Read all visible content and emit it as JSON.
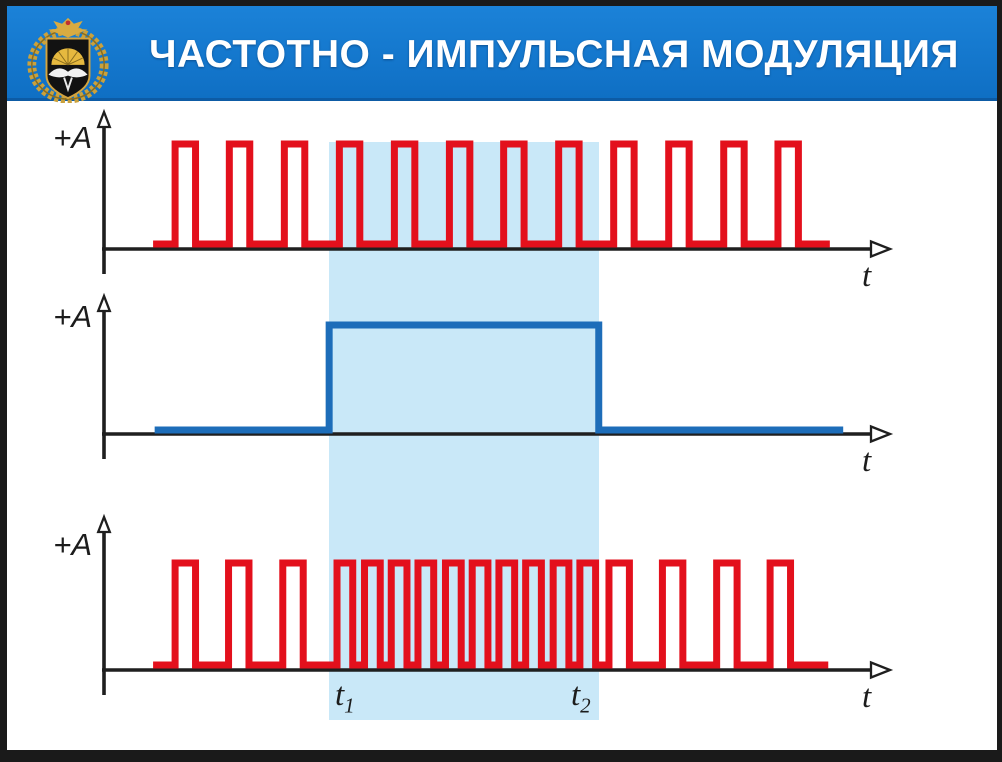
{
  "header": {
    "title": "ЧАСТОТНО - ИМПУЛЬСНАЯ МОДУЛЯЦИЯ",
    "background": "#1278cc",
    "title_color": "#ffffff"
  },
  "colors": {
    "slide_background": "#ffffff",
    "frame": "#1a1a1a",
    "axis": "#1f1f1f",
    "pulse_red": "#e3101c",
    "signal_blue": "#1d6db9",
    "band_blue": "#c9e8f8"
  },
  "labels": {
    "amplitude": "+A",
    "time_axis": "t",
    "t1": {
      "base": "t",
      "sub": "1"
    },
    "t2": {
      "base": "t",
      "sub": "2"
    }
  },
  "band": {
    "t_start": 28.9,
    "t_end": 63.2,
    "color": "#c9e8f8"
  },
  "chart_data": [
    {
      "id": "carrier-pulse-train",
      "type": "square-pulse-train",
      "y_high_label": "+A",
      "x_label": "t",
      "amplitude": 1,
      "x_range": [
        0,
        100
      ],
      "baseline": [
        6.5,
        92.6
      ],
      "pulse_width": 2.6,
      "pulse_rise_times": [
        9.3,
        16.2,
        23.2,
        30.2,
        37.2,
        44.2,
        51.1,
        58.1,
        65.1,
        72.1,
        79.1,
        86.0
      ],
      "color": "#e3101c"
    },
    {
      "id": "modulating-signal",
      "type": "square-pulse",
      "y_high_label": "+A",
      "x_label": "t",
      "amplitude": 1,
      "x_range": [
        0,
        100
      ],
      "baseline": [
        6.7,
        94.3
      ],
      "rise_time": 28.9,
      "fall_time": 63.2,
      "color": "#1d6db9"
    },
    {
      "id": "pfm-output",
      "type": "square-pulse-train",
      "y_high_label": "+A",
      "x_label": "t",
      "amplitude": 1,
      "x_range": [
        0,
        100
      ],
      "baseline": [
        6.5,
        92.4
      ],
      "segments": [
        {
          "pulse_width": 2.6,
          "rises": [
            9.3,
            16.1,
            23.0
          ]
        },
        {
          "pulse_width": 2.0,
          "rises": [
            29.9,
            33.4,
            36.8,
            40.2,
            43.7,
            47.1,
            50.5,
            53.9,
            57.4,
            60.8
          ]
        },
        {
          "pulse_width": 2.6,
          "rises": [
            64.5,
            71.3,
            78.2,
            85.0
          ]
        }
      ],
      "color": "#e3101c"
    }
  ]
}
